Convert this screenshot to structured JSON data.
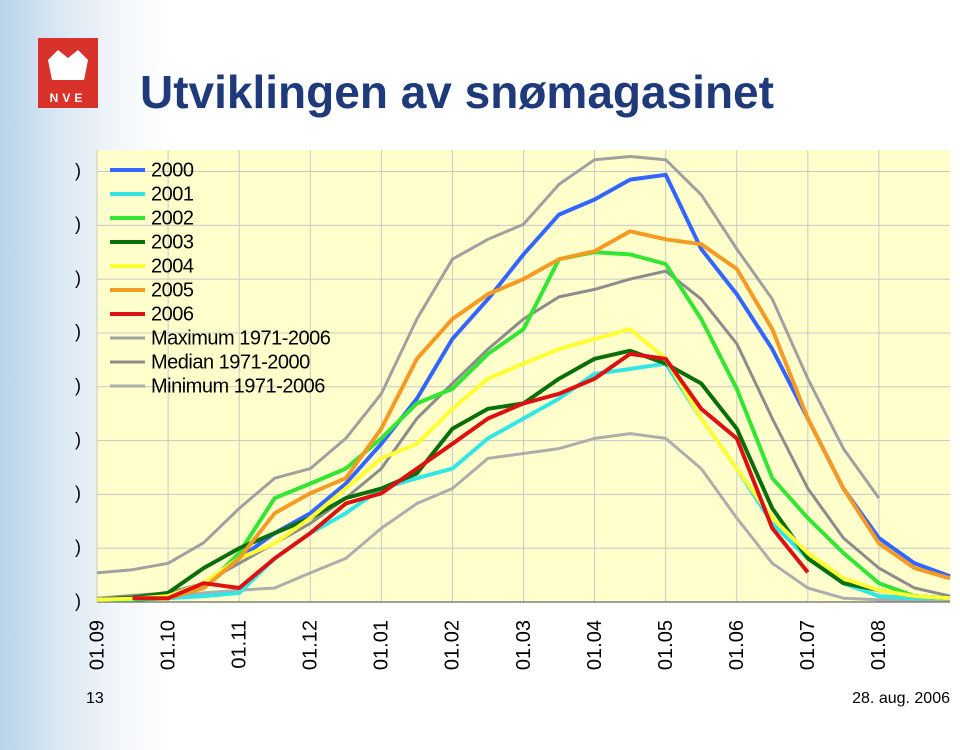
{
  "logo_text": "NVE",
  "page_number": "13",
  "date": "28. aug. 2006",
  "chart_data": {
    "type": "line",
    "title": "Utviklingen av snømagasinet",
    "x": [
      0,
      0.5,
      1,
      1.5,
      2,
      2.5,
      3,
      3.5,
      4,
      4.5,
      5,
      5.5,
      6,
      6.5,
      7,
      7.5,
      8,
      8.5,
      9,
      9.5,
      10,
      10.5,
      11,
      11.5,
      12
    ],
    "xlim": [
      0,
      12
    ],
    "xticks": [
      {
        "value": 0,
        "label": "01.09"
      },
      {
        "value": 1,
        "label": "01.10"
      },
      {
        "value": 2,
        "label": "01.11"
      },
      {
        "value": 3,
        "label": "01.12"
      },
      {
        "value": 4,
        "label": "01.01"
      },
      {
        "value": 5,
        "label": "01.02"
      },
      {
        "value": 6,
        "label": "01.03"
      },
      {
        "value": 7,
        "label": "01.04"
      },
      {
        "value": 8,
        "label": "01.05"
      },
      {
        "value": 9,
        "label": "01.06"
      },
      {
        "value": 10,
        "label": "01.07"
      },
      {
        "value": 11,
        "label": "01.08"
      }
    ],
    "ylim": [
      0,
      8.4
    ],
    "yticks": [
      {
        "value": 0,
        "label": ")"
      },
      {
        "value": 1,
        "label": ")"
      },
      {
        "value": 2,
        "label": ")"
      },
      {
        "value": 3,
        "label": ")"
      },
      {
        "value": 4,
        "label": ")"
      },
      {
        "value": 5,
        "label": ")"
      },
      {
        "value": 6,
        "label": ")"
      },
      {
        "value": 7,
        "label": ")"
      },
      {
        "value": 8,
        "label": ")"
      }
    ],
    "grid": true,
    "legend": "upper-left",
    "series": [
      {
        "name": "2000",
        "color": "#3366ff",
        "values": [
          0.04,
          0.05,
          0.07,
          0.26,
          0.81,
          1.28,
          1.65,
          2.2,
          2.94,
          3.78,
          4.89,
          5.63,
          6.46,
          7.2,
          7.48,
          7.85,
          7.94,
          6.56,
          5.72,
          4.7,
          3.41,
          2.11,
          1.19,
          0.72,
          0.48
        ]
      },
      {
        "name": "2001",
        "color": "#33e6e6",
        "values": [
          0.04,
          0.04,
          0.07,
          0.11,
          0.17,
          0.81,
          1.28,
          1.65,
          2.11,
          2.3,
          2.48,
          3.04,
          3.41,
          3.78,
          4.24,
          4.33,
          4.43,
          3.41,
          2.48,
          1.46,
          0.81,
          0.35,
          0.11,
          0.07,
          0.07
        ]
      },
      {
        "name": "2002",
        "color": "#33e633",
        "values": [
          0.04,
          0.05,
          0.07,
          0.26,
          0.91,
          1.93,
          2.2,
          2.48,
          3.04,
          3.69,
          3.96,
          4.61,
          5.07,
          6.37,
          6.5,
          6.46,
          6.28,
          5.26,
          3.96,
          2.3,
          1.56,
          0.91,
          0.35,
          0.11,
          0.07
        ]
      },
      {
        "name": "2003",
        "color": "#0a6e0a",
        "values": [
          0.04,
          0.08,
          0.17,
          0.63,
          1.0,
          1.28,
          1.56,
          1.93,
          2.11,
          2.39,
          3.22,
          3.59,
          3.69,
          4.15,
          4.52,
          4.67,
          4.43,
          4.06,
          3.22,
          1.74,
          0.81,
          0.35,
          0.22,
          0.11,
          0.07
        ]
      },
      {
        "name": "2004",
        "color": "#ffff33",
        "values": [
          0.04,
          0.06,
          0.11,
          0.35,
          0.81,
          1.09,
          1.56,
          2.11,
          2.67,
          2.94,
          3.59,
          4.15,
          4.43,
          4.7,
          4.89,
          5.07,
          4.52,
          3.41,
          2.48,
          1.56,
          0.91,
          0.44,
          0.22,
          0.11,
          0.07
        ]
      },
      {
        "name": "2005",
        "color": "#f59a23",
        "values": [
          null,
          null,
          0.07,
          0.26,
          0.81,
          1.65,
          2.02,
          2.3,
          3.22,
          4.52,
          5.26,
          5.72,
          6.0,
          6.37,
          6.52,
          6.89,
          6.74,
          6.65,
          6.19,
          5.07,
          3.41,
          2.11,
          1.09,
          0.63,
          0.44
        ]
      },
      {
        "name": "2006",
        "color": "#dd1111",
        "values": [
          null,
          0.07,
          0.07,
          0.35,
          0.26,
          0.81,
          1.28,
          1.83,
          2.02,
          2.48,
          2.94,
          3.41,
          3.69,
          3.87,
          4.15,
          4.61,
          4.52,
          3.59,
          3.04,
          1.37,
          0.55,
          null,
          null,
          null,
          null
        ]
      },
      {
        "name": "Maximum 1971-2006",
        "color": "#a0a0a0",
        "values": [
          0.54,
          0.6,
          0.72,
          1.1,
          1.74,
          2.3,
          2.48,
          3.04,
          3.87,
          5.26,
          6.37,
          6.74,
          7.02,
          7.76,
          8.22,
          8.28,
          8.22,
          7.57,
          6.56,
          5.63,
          4.15,
          2.85,
          1.93,
          null,
          null
        ]
      },
      {
        "name": "Median 1971-2000",
        "color": "#8c8c8c",
        "values": [
          0.07,
          0.12,
          0.17,
          0.35,
          0.72,
          1.09,
          1.46,
          1.93,
          2.48,
          3.41,
          4.06,
          4.7,
          5.26,
          5.67,
          5.81,
          6.0,
          6.15,
          5.63,
          4.8,
          3.41,
          2.11,
          1.19,
          0.63,
          0.26,
          0.11
        ]
      },
      {
        "name": "Minimum 1971-2006",
        "color": "#adadad",
        "values": [
          0.07,
          0.07,
          0.07,
          0.17,
          0.22,
          0.26,
          0.54,
          0.81,
          1.37,
          1.83,
          2.11,
          2.67,
          2.76,
          2.85,
          3.04,
          3.13,
          3.04,
          2.48,
          1.56,
          0.72,
          0.26,
          0.07,
          0.04,
          0.04,
          0.04
        ]
      }
    ]
  }
}
